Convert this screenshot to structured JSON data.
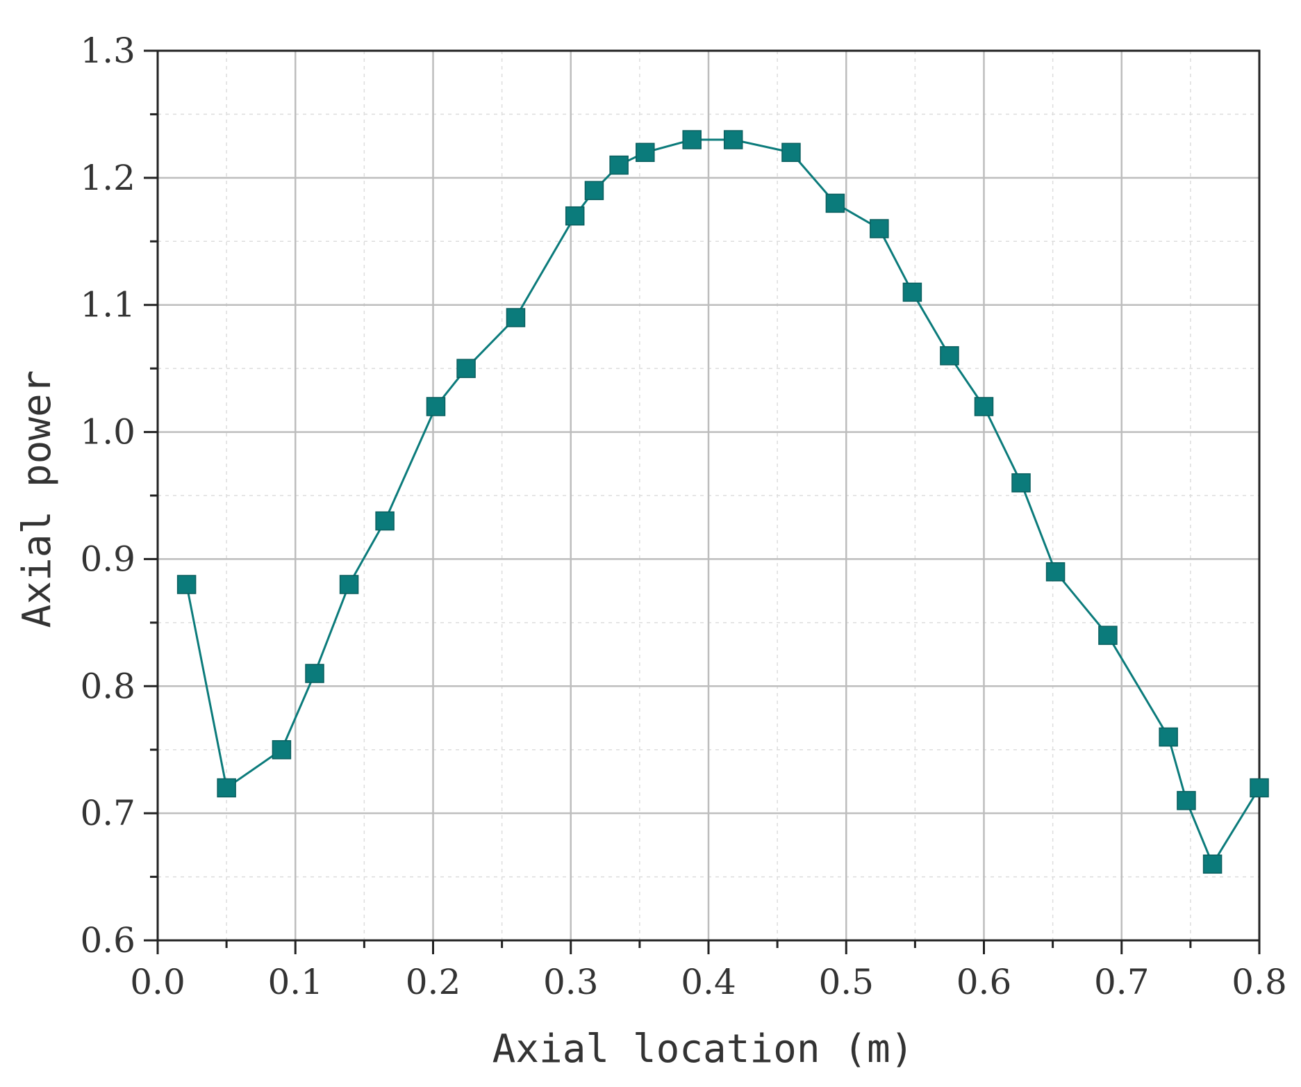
{
  "chart_data": {
    "type": "line",
    "xlabel": "Axial location (m)",
    "ylabel": "Axial power",
    "xlim": [
      0.0,
      0.8
    ],
    "ylim": [
      0.6,
      1.3
    ],
    "xticks": [
      "0.0",
      "0.1",
      "0.2",
      "0.3",
      "0.4",
      "0.5",
      "0.6",
      "0.7",
      "0.8"
    ],
    "yticks": [
      "0.6",
      "0.7",
      "0.8",
      "0.9",
      "1.0",
      "1.1",
      "1.2",
      "1.3"
    ],
    "grid": true,
    "marker": "square",
    "colors": {
      "series": "#0b7b7b",
      "grid_major": "#bdbdbd",
      "grid_minor": "#dddddd",
      "axis": "#222222"
    },
    "series": [
      {
        "x": [
          0.021,
          0.05,
          0.09,
          0.114,
          0.139,
          0.165,
          0.202,
          0.224,
          0.26,
          0.303,
          0.317,
          0.335,
          0.354,
          0.388,
          0.418,
          0.46,
          0.492,
          0.524,
          0.548,
          0.575,
          0.6,
          0.627,
          0.652,
          0.69,
          0.734,
          0.747,
          0.766,
          0.8
        ],
        "y": [
          0.88,
          0.72,
          0.75,
          0.81,
          0.88,
          0.93,
          1.02,
          1.05,
          1.09,
          1.17,
          1.19,
          1.21,
          1.22,
          1.23,
          1.23,
          1.22,
          1.18,
          1.16,
          1.11,
          1.06,
          1.02,
          0.96,
          0.89,
          0.84,
          0.76,
          0.71,
          0.66,
          0.72
        ]
      }
    ]
  }
}
